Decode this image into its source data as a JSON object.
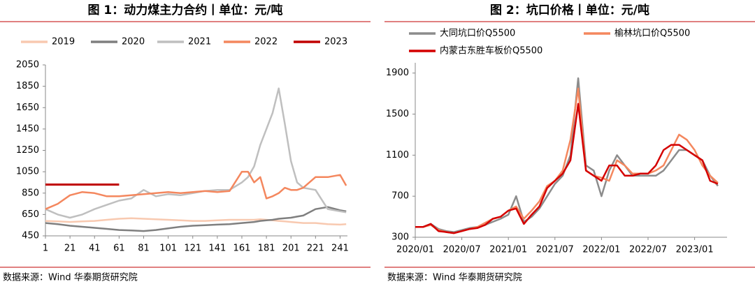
{
  "chart_data": [
    {
      "type": "line",
      "title": "图 1：动力煤主力合约丨单位：元/吨",
      "source": "数据来源：Wind 华泰期货研究院",
      "x": [
        1,
        11,
        21,
        31,
        41,
        51,
        61,
        71,
        81,
        91,
        101,
        111,
        121,
        131,
        141,
        151,
        161,
        166,
        171,
        176,
        181,
        186,
        191,
        196,
        201,
        206,
        211,
        221,
        231,
        241,
        246
      ],
      "xlim": [
        1,
        247
      ],
      "xticks": [
        1,
        21,
        41,
        61,
        81,
        101,
        121,
        141,
        161,
        181,
        201,
        221,
        241
      ],
      "ylim": [
        450,
        2050
      ],
      "yticks": [
        450,
        650,
        850,
        1050,
        1250,
        1450,
        1650,
        1850,
        2050
      ],
      "series": [
        {
          "name": "2019",
          "color": "#f8c9b0",
          "values": [
            590,
            585,
            580,
            585,
            590,
            600,
            610,
            615,
            610,
            605,
            600,
            595,
            590,
            590,
            595,
            600,
            600,
            600,
            600,
            605,
            600,
            595,
            590,
            585,
            580,
            575,
            570,
            570,
            560,
            555,
            560
          ]
        },
        {
          "name": "2020",
          "color": "#7f7f7f",
          "values": [
            570,
            560,
            545,
            535,
            525,
            515,
            505,
            500,
            495,
            505,
            520,
            535,
            545,
            550,
            555,
            560,
            570,
            575,
            580,
            590,
            595,
            600,
            610,
            615,
            620,
            630,
            640,
            700,
            720,
            690,
            680
          ]
        },
        {
          "name": "2021",
          "color": "#bfbfbf",
          "values": [
            700,
            650,
            620,
            650,
            700,
            740,
            780,
            800,
            880,
            820,
            840,
            830,
            850,
            870,
            880,
            880,
            950,
            1000,
            1100,
            1300,
            1450,
            1600,
            1830,
            1500,
            1150,
            950,
            900,
            880,
            700,
            680,
            670
          ]
        },
        {
          "name": "2022",
          "color": "#f4875e",
          "values": [
            700,
            750,
            830,
            860,
            850,
            820,
            820,
            830,
            840,
            850,
            860,
            850,
            860,
            870,
            860,
            870,
            1050,
            1050,
            950,
            1000,
            800,
            820,
            850,
            900,
            880,
            880,
            900,
            1000,
            1000,
            1020,
            920
          ]
        },
        {
          "name": "2023",
          "color": "#c00000",
          "values": [
            930,
            930,
            930,
            930,
            930,
            930,
            930,
            null,
            null,
            null,
            null,
            null,
            null,
            null,
            null,
            null,
            null,
            null,
            null,
            null,
            null,
            null,
            null,
            null,
            null,
            null,
            null,
            null,
            null,
            null,
            null
          ]
        }
      ]
    },
    {
      "type": "line",
      "title": "图 2：坑口价格丨单位：元/吨",
      "source": "数据来源：Wind 华泰期货研究院",
      "x": [
        "2020/01",
        "2020/02",
        "2020/03",
        "2020/04",
        "2020/05",
        "2020/06",
        "2020/07",
        "2020/08",
        "2020/09",
        "2020/10",
        "2020/11",
        "2020/12",
        "2021/01",
        "2021/02",
        "2021/03",
        "2021/04",
        "2021/05",
        "2021/06",
        "2021/07",
        "2021/08",
        "2021/09",
        "2021/10",
        "2021/11",
        "2021/12",
        "2022/01",
        "2022/02",
        "2022/03",
        "2022/04",
        "2022/05",
        "2022/06",
        "2022/07",
        "2022/08",
        "2022/09",
        "2022/10",
        "2022/11",
        "2022/12",
        "2023/01",
        "2023/02",
        "2023/03",
        "2023/04"
      ],
      "xticks": [
        "2020/01",
        "2020/07",
        "2021/01",
        "2021/07",
        "2022/01",
        "2022/07",
        "2023/01"
      ],
      "ylim": [
        300,
        2000
      ],
      "yticks": [
        300,
        700,
        1100,
        1500,
        1900
      ],
      "series": [
        {
          "name": "大同坑口价Q5500",
          "color": "#8c8c8c",
          "values": [
            400,
            400,
            430,
            380,
            360,
            350,
            370,
            390,
            400,
            420,
            450,
            480,
            520,
            700,
            450,
            500,
            580,
            700,
            820,
            900,
            1100,
            1850,
            1000,
            950,
            700,
            950,
            1100,
            1000,
            900,
            900,
            900,
            900,
            950,
            1050,
            1150,
            1150,
            1100,
            1050,
            900,
            800
          ]
        },
        {
          "name": "榆林坑口价Q5500",
          "color": "#f4875e",
          "values": [
            400,
            400,
            420,
            370,
            350,
            340,
            360,
            380,
            400,
            440,
            480,
            500,
            560,
            600,
            480,
            560,
            650,
            800,
            850,
            950,
            1250,
            1750,
            950,
            900,
            880,
            850,
            1050,
            1000,
            920,
            920,
            920,
            950,
            1000,
            1150,
            1300,
            1250,
            1150,
            1000,
            900,
            830
          ]
        },
        {
          "name": "内蒙古东胜车板价Q5500",
          "color": "#d40000",
          "values": [
            400,
            400,
            430,
            360,
            350,
            340,
            360,
            380,
            390,
            420,
            480,
            500,
            560,
            580,
            430,
            520,
            600,
            780,
            850,
            920,
            1050,
            1600,
            950,
            900,
            850,
            1000,
            1000,
            900,
            900,
            920,
            920,
            1000,
            1150,
            1200,
            1200,
            1150,
            1100,
            1050,
            850,
            820
          ]
        }
      ]
    }
  ]
}
